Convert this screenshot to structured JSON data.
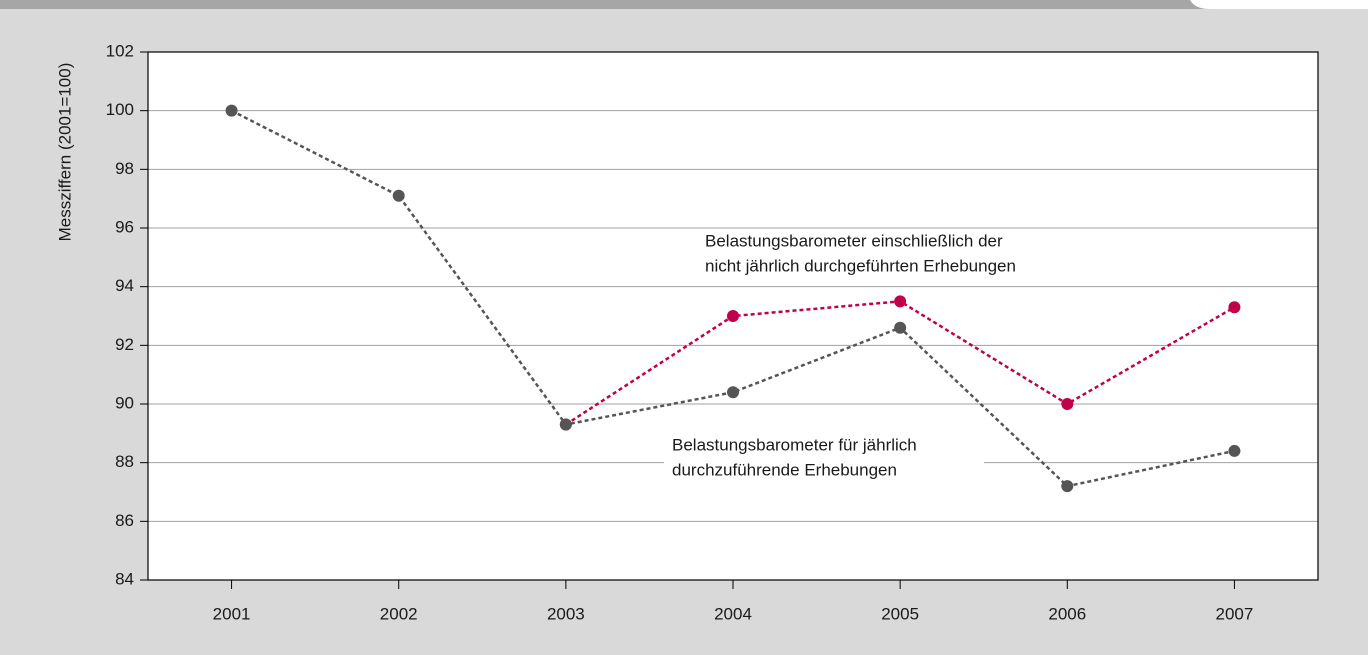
{
  "chart_data": {
    "type": "line",
    "y_label": "Messziffern (2001=100)",
    "categories": [
      "2001",
      "2002",
      "2003",
      "2004",
      "2005",
      "2006",
      "2007"
    ],
    "series": [
      {
        "color": "#c0004a",
        "values": [
          null,
          null,
          89.3,
          93.0,
          93.5,
          90.0,
          93.3
        ]
      },
      {
        "color": "#555555",
        "values": [
          100,
          97.1,
          89.3,
          90.4,
          92.6,
          87.2,
          88.4
        ]
      }
    ],
    "annotations": [
      {
        "color": "#c0004a",
        "lines": [
          "Belastungsbarometer einschließlich der",
          "nicht jährlich durchgeführten Erhebungen"
        ]
      },
      {
        "color": "#1a1a1a",
        "lines": [
          "Belastungsbarometer für jährlich",
          "durchzuführende Erhebungen"
        ]
      }
    ],
    "ylim": [
      84,
      102
    ],
    "yticks": [
      84,
      86,
      88,
      90,
      92,
      94,
      96,
      98,
      100,
      102
    ],
    "grid": true
  }
}
